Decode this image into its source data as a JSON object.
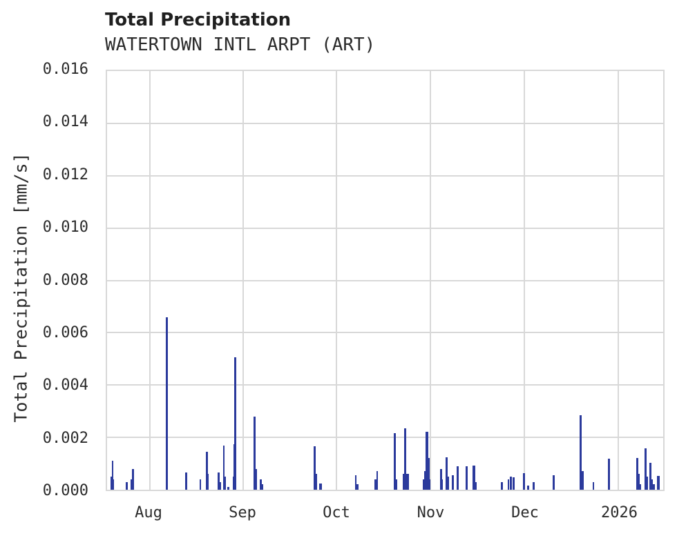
{
  "header": {
    "title": "Total Precipitation",
    "subtitle": "WATERTOWN INTL ARPT (ART)"
  },
  "chart_data": {
    "type": "bar",
    "title": "Total Precipitation",
    "subtitle": "WATERTOWN INTL ARPT (ART)",
    "xlabel": "",
    "ylabel": "Total Precipitation [mm/s]",
    "ylim": [
      0,
      0.016
    ],
    "yticks": [
      0.0,
      0.002,
      0.004,
      0.006,
      0.008,
      0.01,
      0.012,
      0.014,
      0.016
    ],
    "ytick_labels": [
      "0.000",
      "0.002",
      "0.004",
      "0.006",
      "0.008",
      "0.010",
      "0.012",
      "0.014",
      "0.016"
    ],
    "xticks": [
      {
        "label": "Aug",
        "f": 0.0766
      },
      {
        "label": "Sep",
        "f": 0.2448
      },
      {
        "label": "Oct",
        "f": 0.4129
      },
      {
        "label": "Nov",
        "f": 0.5816
      },
      {
        "label": "Dec",
        "f": 0.7503
      },
      {
        "label": "2026",
        "f": 0.919
      }
    ],
    "grid": true,
    "legend": "none",
    "colors": {
      "spike": "#2b3a9c",
      "grid": "#d8d8d8",
      "text": "#2b2b2b",
      "title": "#1f1f1f"
    },
    "spikes_format": "[x_fraction_along_time_axis, value_mm_per_s, bar_width_px]",
    "spikes": [
      [
        0.008,
        0.0005,
        2
      ],
      [
        0.0099,
        0.0011,
        2.5
      ],
      [
        0.0117,
        0.0004,
        2
      ],
      [
        0.0358,
        0.0003,
        3
      ],
      [
        0.0439,
        0.0004,
        2
      ],
      [
        0.0464,
        0.0008,
        2.5
      ],
      [
        0.1075,
        0.0066,
        3
      ],
      [
        0.1428,
        0.00065,
        3
      ],
      [
        0.1675,
        0.0004,
        2.5
      ],
      [
        0.1792,
        0.00145,
        2.5
      ],
      [
        0.1811,
        0.0006,
        2
      ],
      [
        0.2009,
        0.00065,
        2.5
      ],
      [
        0.2033,
        0.0003,
        2
      ],
      [
        0.2101,
        0.0017,
        2.5
      ],
      [
        0.212,
        0.0005,
        2
      ],
      [
        0.2182,
        0.0001,
        3
      ],
      [
        0.2268,
        0.0005,
        2
      ],
      [
        0.2287,
        0.00175,
        2
      ],
      [
        0.2305,
        0.00505,
        3
      ],
      [
        0.2652,
        0.0028,
        3
      ],
      [
        0.267,
        0.0008,
        4
      ],
      [
        0.2763,
        0.0004,
        2.5
      ],
      [
        0.2794,
        0.0002,
        2.5
      ],
      [
        0.3733,
        0.00165,
        3
      ],
      [
        0.3764,
        0.0006,
        2
      ],
      [
        0.3844,
        0.00025,
        4
      ],
      [
        0.4469,
        0.00055,
        2.5
      ],
      [
        0.45,
        0.0002,
        3
      ],
      [
        0.4827,
        0.0004,
        3
      ],
      [
        0.4858,
        0.0007,
        2.5
      ],
      [
        0.5173,
        0.00215,
        3
      ],
      [
        0.5204,
        0.0004,
        3
      ],
      [
        0.5359,
        0.00235,
        3
      ],
      [
        0.5377,
        0.0006,
        9
      ],
      [
        0.5717,
        0.0007,
        3
      ],
      [
        0.5748,
        0.00222,
        4
      ],
      [
        0.5779,
        0.0012,
        3
      ],
      [
        0.5748,
        0.0004,
        11
      ],
      [
        0.6001,
        0.0008,
        3
      ],
      [
        0.6026,
        0.0004,
        2
      ],
      [
        0.6107,
        0.00123,
        3
      ],
      [
        0.6131,
        0.0005,
        2
      ],
      [
        0.6218,
        0.00055,
        3
      ],
      [
        0.631,
        0.0009,
        3
      ],
      [
        0.6465,
        0.0009,
        3.5
      ],
      [
        0.6595,
        0.00092,
        3.5
      ],
      [
        0.6632,
        0.0003,
        3
      ],
      [
        0.7095,
        0.0003,
        3
      ],
      [
        0.7219,
        0.0004,
        2.5
      ],
      [
        0.7262,
        0.0005,
        3
      ],
      [
        0.7312,
        0.00048,
        3
      ],
      [
        0.7497,
        0.00063,
        3.5
      ],
      [
        0.7571,
        0.00015,
        2.5
      ],
      [
        0.767,
        0.00028,
        3
      ],
      [
        0.8034,
        0.00055,
        3
      ],
      [
        0.8516,
        0.00285,
        3.5
      ],
      [
        0.8547,
        0.0007,
        3
      ],
      [
        0.8745,
        0.00028,
        2.5
      ],
      [
        0.903,
        0.00118,
        3
      ],
      [
        0.9536,
        0.0012,
        3.5
      ],
      [
        0.9567,
        0.0006,
        2.5
      ],
      [
        0.9592,
        0.0002,
        2
      ],
      [
        0.9685,
        0.00157,
        3
      ],
      [
        0.9703,
        0.0005,
        4
      ],
      [
        0.9771,
        0.00103,
        3
      ],
      [
        0.9796,
        0.0004,
        2
      ],
      [
        0.9827,
        0.0002,
        3
      ],
      [
        0.9913,
        0.00052,
        3.5
      ]
    ]
  }
}
